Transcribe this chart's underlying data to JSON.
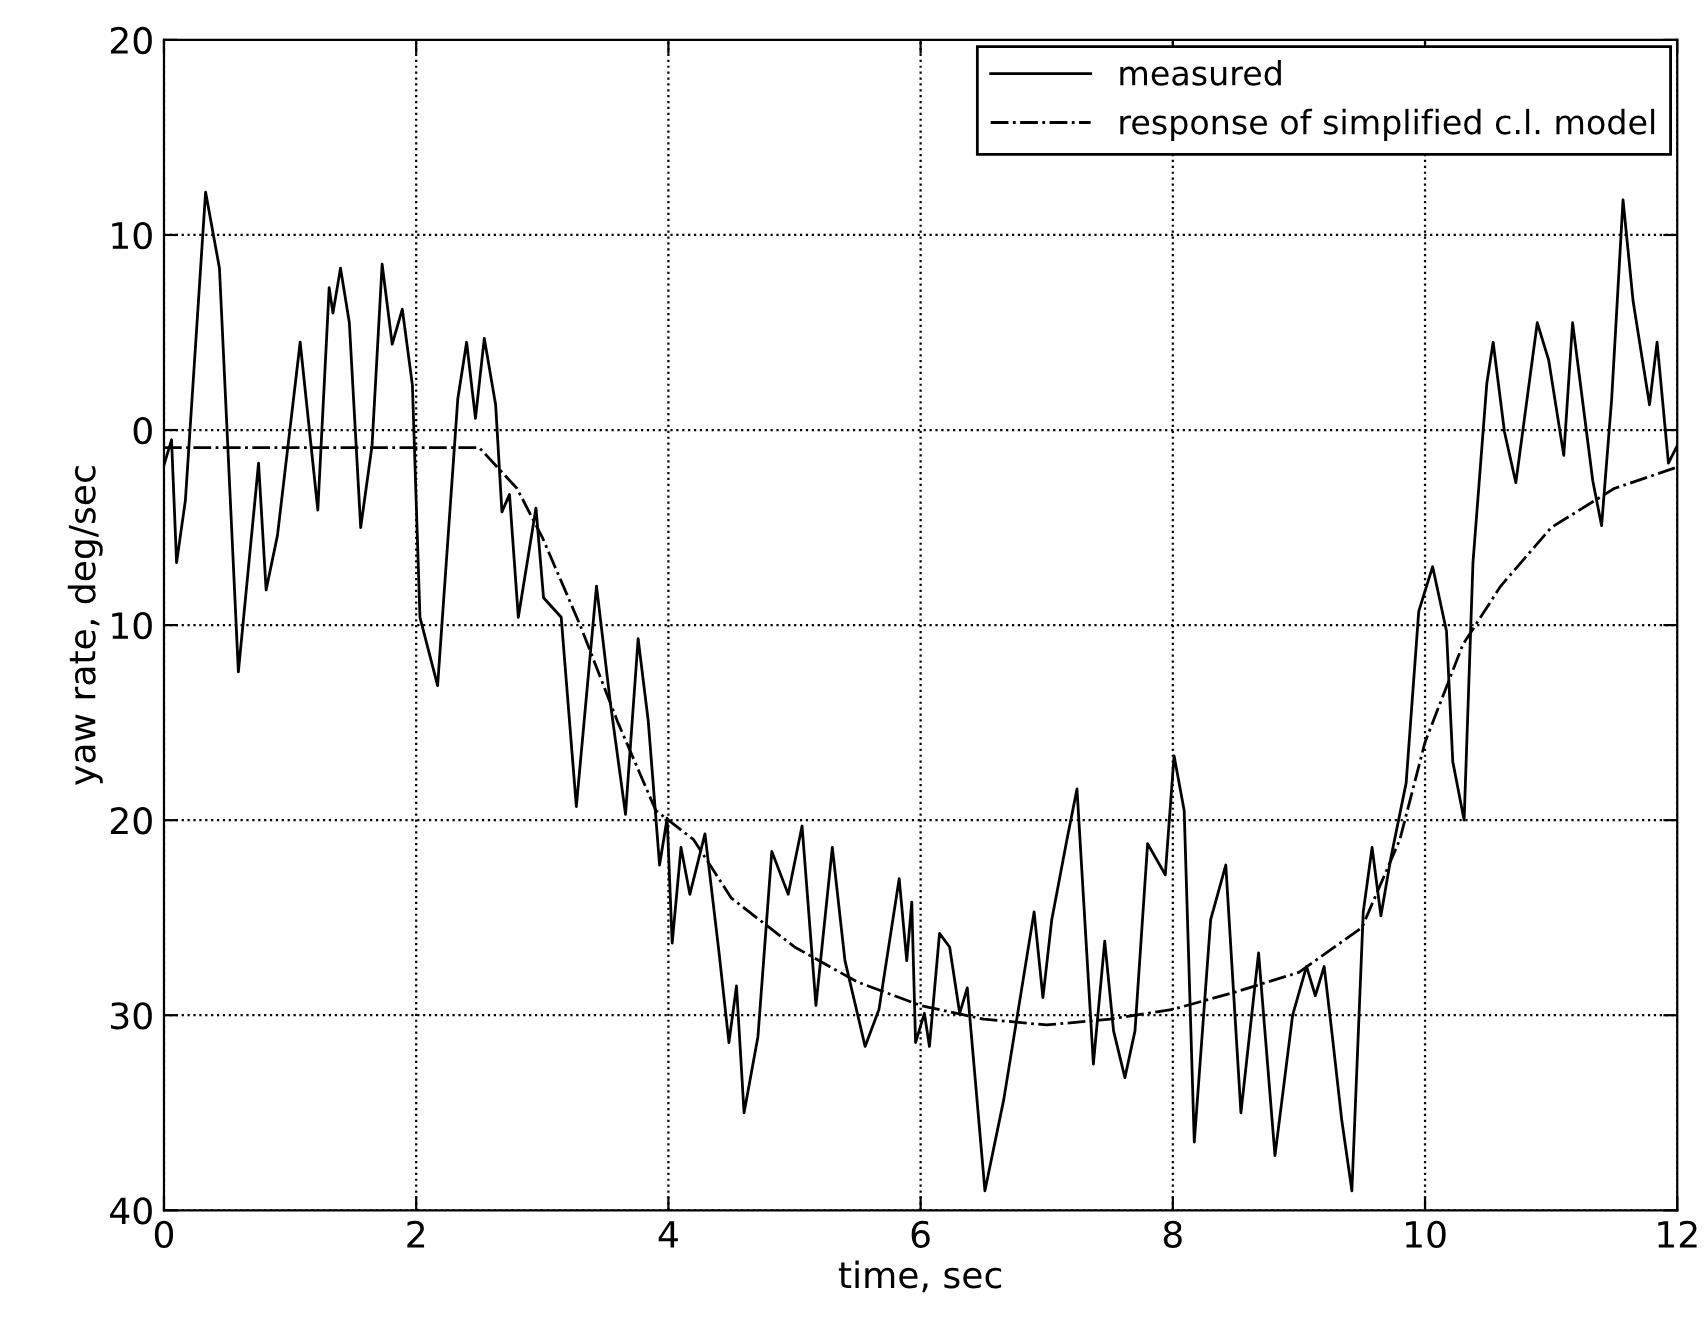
{
  "chart_data": {
    "type": "line",
    "xlabel": "time, sec",
    "ylabel": "yaw rate, deg/sec",
    "xlim": [
      0,
      12
    ],
    "xticks": [
      0,
      2,
      4,
      6,
      8,
      10,
      12
    ],
    "ylim": [
      -40,
      20
    ],
    "yticks": [
      20,
      10,
      0,
      {
        "value": -10,
        "label": "10"
      },
      {
        "value": -20,
        "label": "20"
      },
      {
        "value": -30,
        "label": "30"
      },
      {
        "value": -40,
        "label": "40"
      }
    ],
    "grid": true,
    "legend": "top right",
    "marker": "none",
    "series": [
      {
        "name": "measured",
        "color": "#000000",
        "line_style": "solid",
        "x": [
          0,
          0.06,
          0.1,
          0.17,
          0.33,
          0.44,
          0.59,
          0.75,
          0.81,
          0.9,
          1.08,
          1.22,
          1.31,
          1.34,
          1.4,
          1.47,
          1.56,
          1.65,
          1.73,
          1.81,
          1.89,
          1.97,
          2.03,
          2.17,
          2.33,
          2.4,
          2.47,
          2.54,
          2.63,
          2.68,
          2.74,
          2.81,
          2.95,
          3.01,
          3.15,
          3.27,
          3.43,
          3.54,
          3.66,
          3.76,
          3.84,
          3.93,
          3.99,
          4.03,
          4.1,
          4.17,
          4.29,
          4.4,
          4.48,
          4.54,
          4.6,
          4.71,
          4.82,
          4.95,
          5.06,
          5.17,
          5.3,
          5.4,
          5.56,
          5.67,
          5.83,
          5.89,
          5.93,
          5.96,
          6.03,
          6.07,
          6.15,
          6.23,
          6.31,
          6.37,
          6.51,
          6.66,
          6.9,
          6.97,
          7.04,
          7.16,
          7.24,
          7.37,
          7.46,
          7.53,
          7.62,
          7.7,
          7.8,
          7.94,
          8.01,
          8.09,
          8.17,
          8.3,
          8.42,
          8.54,
          8.68,
          8.81,
          8.95,
          9.06,
          9.13,
          9.2,
          9.26,
          9.34,
          9.42,
          9.51,
          9.58,
          9.65,
          9.73,
          9.85,
          9.95,
          10.06,
          10.17,
          10.22,
          10.31,
          10.38,
          10.49,
          10.54,
          10.63,
          10.72,
          10.89,
          10.98,
          11.1,
          11.17,
          11.33,
          11.4,
          11.48,
          11.57,
          11.65,
          11.78,
          11.84,
          11.93,
          12.0
        ],
        "values": [
          -1.8,
          -0.5,
          -6.8,
          -3.6,
          12.2,
          8.3,
          -12.4,
          -1.7,
          -8.2,
          -5.4,
          4.5,
          -4.1,
          7.3,
          6,
          8.3,
          5.5,
          -5.0,
          -0.8,
          8.5,
          4.4,
          6.2,
          2.3,
          -9.6,
          -13.1,
          1.6,
          4.5,
          0.6,
          4.7,
          1.3,
          -4.2,
          -3.3,
          -9.6,
          -4.0,
          -8.6,
          -9.6,
          -19.3,
          -8.0,
          -14.0,
          -19.7,
          -10.7,
          -14.9,
          -22.3,
          -19.9,
          -26.3,
          -21.4,
          -23.8,
          -20.7,
          -26.7,
          -31.4,
          -28.5,
          -35.0,
          -31.1,
          -21.6,
          -23.8,
          -20.3,
          -29.5,
          -21.4,
          -27.2,
          -31.6,
          -29.7,
          -23.0,
          -27.2,
          -24.2,
          -31.4,
          -29.9,
          -31.6,
          -25.8,
          -26.5,
          -29.9,
          -28.6,
          -39.0,
          -34.3,
          -24.7,
          -29.1,
          -25.1,
          -21.0,
          -18.4,
          -32.5,
          -26.2,
          -30.8,
          -33.2,
          -30.8,
          -21.2,
          -22.8,
          -16.7,
          -19.5,
          -36.5,
          -25.1,
          -22.3,
          -35.0,
          -26.8,
          -37.2,
          -30.0,
          -27.5,
          -29.0,
          -27.5,
          -30.8,
          -35.4,
          -39.0,
          -24.7,
          -21.4,
          -24.9,
          -21.9,
          -18.1,
          -9.3,
          -7.0,
          -10.3,
          -17.0,
          -20.0,
          -6.8,
          2.4,
          4.5,
          -0.1,
          -2.7,
          5.5,
          3.6,
          -1.3,
          5.5,
          -2.6,
          -4.9,
          1.6,
          11.8,
          6.6,
          1.3,
          4.5,
          -1.7,
          -0.8
        ]
      },
      {
        "name": "response of simplified c.l. model",
        "color": "#000000",
        "line_style": "dashdot",
        "x": [
          0,
          1,
          2,
          2.5,
          2.8,
          3.0,
          3.3,
          3.6,
          3.9,
          4.2,
          4.5,
          5.0,
          5.5,
          6.0,
          6.5,
          7.0,
          7.5,
          8.0,
          8.5,
          9.0,
          9.5,
          9.8,
          10.0,
          10.3,
          10.6,
          11.0,
          11.5,
          12.0
        ],
        "values": [
          -0.9,
          -0.9,
          -0.9,
          -0.9,
          -3,
          -5.5,
          -10,
          -15,
          -19.5,
          -21,
          -24,
          -26.5,
          -28.3,
          -29.5,
          -30.2,
          -30.5,
          -30.2,
          -29.7,
          -28.8,
          -27.8,
          -25.5,
          -21,
          -16,
          -11,
          -8,
          -5,
          -3,
          -1.9
        ]
      }
    ]
  }
}
